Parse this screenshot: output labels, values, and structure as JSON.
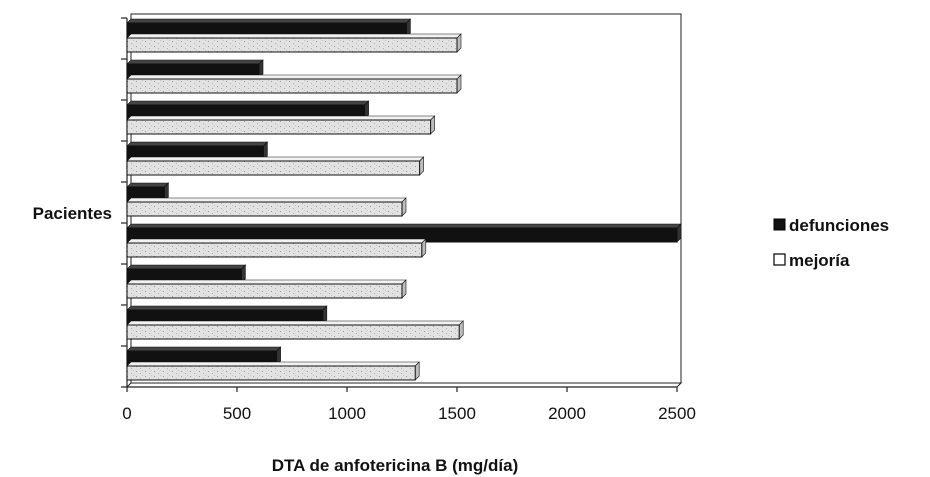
{
  "chart_data": {
    "type": "bar",
    "orientation": "horizontal",
    "three_d": true,
    "title": "",
    "xlabel": "DTA de anfotericina B (mg/día)",
    "ylabel": "Pacientes",
    "xlim": [
      0,
      2500
    ],
    "xticks": [
      0,
      500,
      1000,
      1500,
      2000,
      2500
    ],
    "categories": [
      "",
      "",
      "",
      "",
      "",
      "",
      "",
      "",
      ""
    ],
    "series": [
      {
        "name": "defunciones",
        "color": "#111111",
        "values": [
          1270,
          600,
          1080,
          620,
          170,
          2500,
          520,
          890,
          680
        ]
      },
      {
        "name": "mejoría",
        "color": "#e2e2e2",
        "values": [
          1500,
          1500,
          1380,
          1330,
          1250,
          1340,
          1250,
          1510,
          1310
        ]
      }
    ],
    "legend_position": "right",
    "grid": false
  }
}
